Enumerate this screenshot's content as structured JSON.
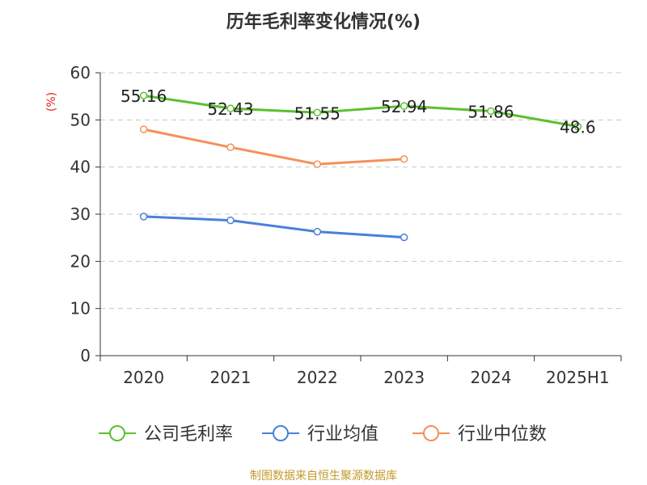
{
  "chart_data": {
    "type": "line",
    "title": "历年毛利率变化情况(%)",
    "ylabel": "(%)",
    "categories": [
      "2020",
      "2021",
      "2022",
      "2023",
      "2024",
      "2025H1"
    ],
    "ylim": [
      0,
      60
    ],
    "yticks": [
      0,
      10,
      20,
      30,
      40,
      50,
      60
    ],
    "grid": true,
    "legend_position": "bottom",
    "series": [
      {
        "name": "公司毛利率",
        "color": "#5cc02f",
        "show_labels": true,
        "values": [
          55.16,
          52.43,
          51.55,
          52.94,
          51.86,
          48.6
        ],
        "labels": [
          "55.16",
          "52.43",
          "51.55",
          "52.94",
          "51.86",
          "48.6"
        ]
      },
      {
        "name": "行业均值",
        "color": "#4a7fdc",
        "show_labels": false,
        "values": [
          29.5,
          28.7,
          26.3,
          25.1,
          null,
          null
        ]
      },
      {
        "name": "行业中位数",
        "color": "#f5905a",
        "show_labels": false,
        "values": [
          48.0,
          44.2,
          40.6,
          41.7,
          null,
          null
        ]
      }
    ]
  },
  "footer": "制图数据来自恒生聚源数据库"
}
